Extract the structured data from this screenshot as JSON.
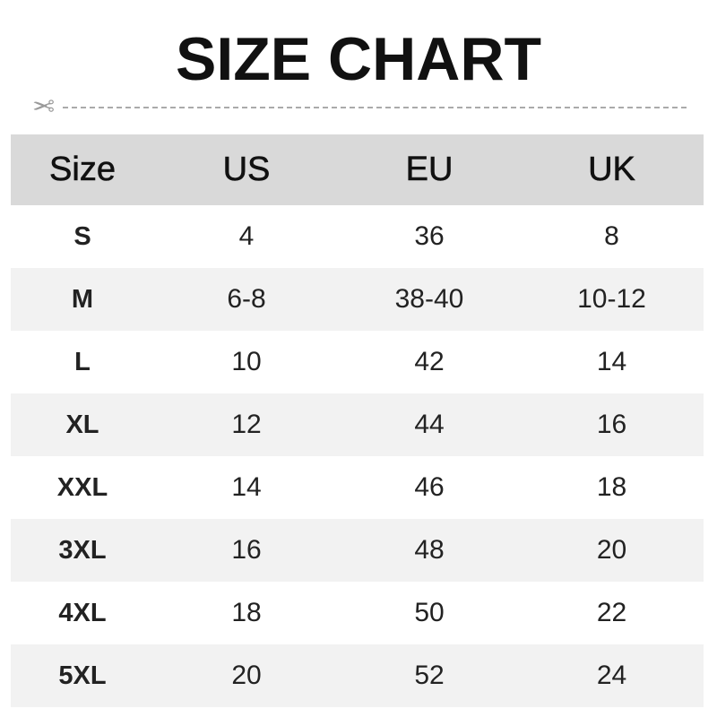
{
  "title": "SIZE CHART",
  "icons": {
    "cut_line": "scissors-icon"
  },
  "colors": {
    "header_bg": "#d9d9d9",
    "stripe_bg": "#f2f2f2",
    "dash": "#aaaaaa"
  },
  "table": {
    "headers": [
      "Size",
      "US",
      "EU",
      "UK"
    ],
    "rows": [
      [
        "S",
        "4",
        "36",
        "8"
      ],
      [
        "M",
        "6-8",
        "38-40",
        "10-12"
      ],
      [
        "L",
        "10",
        "42",
        "14"
      ],
      [
        "XL",
        "12",
        "44",
        "16"
      ],
      [
        "XXL",
        "14",
        "46",
        "18"
      ],
      [
        "3XL",
        "16",
        "48",
        "20"
      ],
      [
        "4XL",
        "18",
        "50",
        "22"
      ],
      [
        "5XL",
        "20",
        "52",
        "24"
      ]
    ]
  }
}
